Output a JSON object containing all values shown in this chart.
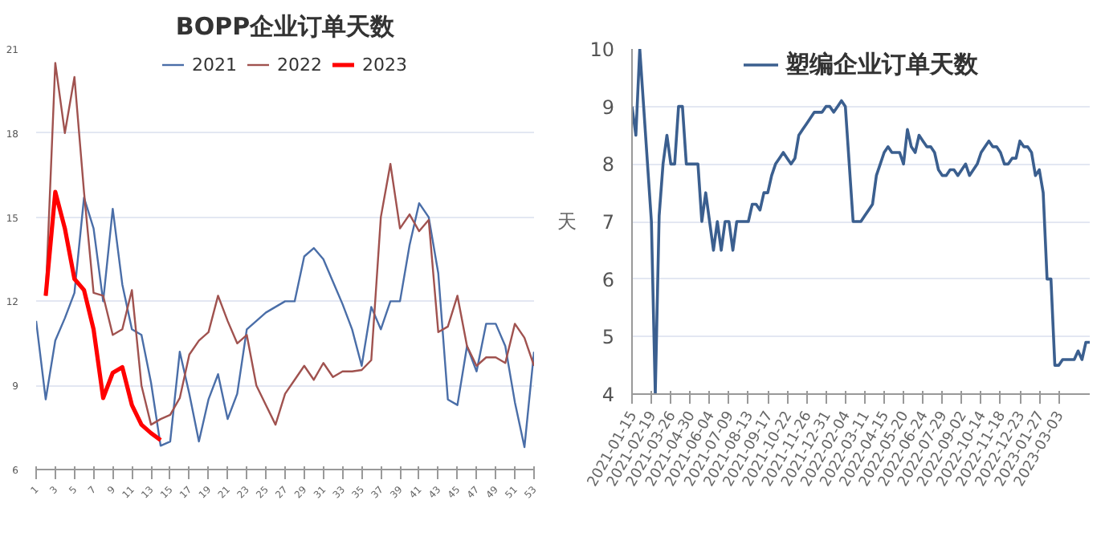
{
  "chart_data": [
    {
      "type": "line",
      "title": "BOPP企业订单天数",
      "x": [
        1,
        2,
        3,
        4,
        5,
        6,
        7,
        8,
        9,
        10,
        11,
        12,
        13,
        14,
        15,
        16,
        17,
        18,
        19,
        20,
        21,
        22,
        23,
        24,
        25,
        26,
        27,
        28,
        29,
        30,
        31,
        32,
        33,
        34,
        35,
        36,
        37,
        38,
        39,
        40,
        41,
        42,
        43,
        44,
        45,
        46,
        47,
        48,
        49,
        50,
        51,
        52,
        53
      ],
      "xlim": [
        1,
        53
      ],
      "xticks": [
        1,
        3,
        5,
        7,
        9,
        11,
        13,
        15,
        17,
        19,
        21,
        23,
        25,
        27,
        29,
        31,
        33,
        35,
        37,
        39,
        41,
        43,
        45,
        47,
        49,
        51,
        53
      ],
      "ylim": [
        6,
        21
      ],
      "yticks": [
        6,
        9,
        12,
        15,
        18,
        21
      ],
      "grid": "y",
      "legend": "top",
      "series": [
        {
          "name": "2021",
          "color": "#4a6ea8",
          "values": [
            11.3,
            8.5,
            10.6,
            11.4,
            12.3,
            15.7,
            14.6,
            12.0,
            15.3,
            12.6,
            11.0,
            10.8,
            9.1,
            6.85,
            7.0,
            10.2,
            8.7,
            7.0,
            8.5,
            9.4,
            7.8,
            8.7,
            11.0,
            11.3,
            11.6,
            11.8,
            12.0,
            12.0,
            13.6,
            13.9,
            13.5,
            12.7,
            11.9,
            11.0,
            9.7,
            11.8,
            11.0,
            12.0,
            12.0,
            14.0,
            15.5,
            15.0,
            13.0,
            8.5,
            8.3,
            10.4,
            9.5,
            11.2,
            11.2,
            10.4,
            8.4,
            6.8,
            10.2
          ]
        },
        {
          "name": "2022",
          "color": "#a0524f",
          "values": [
            null,
            12.2,
            20.5,
            18.0,
            20.0,
            15.9,
            12.3,
            12.2,
            10.8,
            11.0,
            12.4,
            9.0,
            7.6,
            7.8,
            7.95,
            8.55,
            10.1,
            10.6,
            10.9,
            12.2,
            11.3,
            10.5,
            10.8,
            9.0,
            8.3,
            7.6,
            8.7,
            9.2,
            9.7,
            9.2,
            9.8,
            9.3,
            9.5,
            9.5,
            9.55,
            9.9,
            15.0,
            16.9,
            14.6,
            15.1,
            14.5,
            14.9,
            10.9,
            11.1,
            12.2,
            10.4,
            9.7,
            10.0,
            10.0,
            9.8,
            11.2,
            10.7,
            9.7
          ]
        },
        {
          "name": "2023",
          "color": "#ff0000",
          "values": [
            null,
            12.2,
            15.9,
            14.6,
            12.8,
            12.4,
            11.0,
            8.55,
            9.45,
            9.65,
            8.3,
            7.6,
            7.3,
            7.05,
            null,
            null,
            null,
            null,
            null,
            null,
            null,
            null,
            null,
            null,
            null,
            null,
            null,
            null,
            null,
            null,
            null,
            null,
            null,
            null,
            null,
            null,
            null,
            null,
            null,
            null,
            null,
            null,
            null,
            null,
            null,
            null,
            null,
            null,
            null,
            null,
            null,
            null,
            null
          ]
        }
      ]
    },
    {
      "type": "line",
      "ylabel": "天",
      "categories": [
        "2021-01-15",
        null,
        null,
        null,
        null,
        "2021-02-19",
        null,
        null,
        null,
        null,
        "2021-03-26",
        null,
        null,
        null,
        null,
        "2021-04-30",
        null,
        null,
        null,
        null,
        "2021-06-04",
        null,
        null,
        null,
        null,
        "2021-07-09",
        null,
        null,
        null,
        null,
        "2021-08-13",
        null,
        null,
        null,
        null,
        "2021-09-17",
        null,
        null,
        null,
        null,
        "2021-10-22",
        null,
        null,
        null,
        null,
        "2021-11-26",
        null,
        null,
        null,
        null,
        "2021-12-31",
        null,
        null,
        null,
        null,
        "2022-02-04",
        null,
        null,
        null,
        null,
        "2022-03-11",
        null,
        null,
        null,
        null,
        "2022-04-15",
        null,
        null,
        null,
        null,
        "2022-05-20",
        null,
        null,
        null,
        null,
        "2022-06-24",
        null,
        null,
        null,
        null,
        "2022-07-29",
        null,
        null,
        null,
        null,
        "2022-09-02",
        null,
        null,
        null,
        null,
        "2022-10-14",
        null,
        null,
        null,
        null,
        "2022-11-18",
        null,
        null,
        null,
        null,
        "2022-12-23",
        null,
        null,
        null,
        null,
        "2023-01-27",
        null,
        null,
        null,
        null,
        "2023-03-03",
        null,
        null,
        null,
        null,
        null,
        null,
        null,
        null
      ],
      "ylim": [
        4,
        10
      ],
      "yticks": [
        4,
        5,
        6,
        7,
        8,
        9,
        10
      ],
      "grid": "y",
      "legend": "top",
      "series": [
        {
          "name": "塑编企业订单天数",
          "color": "#3b5f8f",
          "values": [
            9.0,
            8.5,
            10.0,
            9.0,
            8.0,
            7.0,
            4.0,
            7.1,
            8.0,
            8.5,
            8.0,
            8.0,
            9.0,
            9.0,
            8.0,
            8.0,
            8.0,
            8.0,
            7.0,
            7.5,
            7.0,
            6.5,
            7.0,
            6.5,
            7.0,
            7.0,
            6.5,
            7.0,
            7.0,
            7.0,
            7.0,
            7.3,
            7.3,
            7.2,
            7.5,
            7.5,
            7.8,
            8.0,
            8.1,
            8.2,
            8.1,
            8.0,
            8.1,
            8.5,
            8.6,
            8.7,
            8.8,
            8.9,
            8.9,
            8.9,
            9.0,
            9.0,
            8.9,
            9.0,
            9.1,
            9.0,
            8.0,
            7.0,
            7.0,
            7.0,
            7.1,
            7.2,
            7.3,
            7.8,
            8.0,
            8.2,
            8.3,
            8.2,
            8.2,
            8.2,
            8.0,
            8.6,
            8.3,
            8.2,
            8.5,
            8.4,
            8.3,
            8.3,
            8.2,
            7.9,
            7.8,
            7.8,
            7.9,
            7.9,
            7.8,
            7.9,
            8.0,
            7.8,
            7.9,
            8.0,
            8.2,
            8.3,
            8.4,
            8.3,
            8.3,
            8.2,
            8.0,
            8.0,
            8.1,
            8.1,
            8.4,
            8.3,
            8.3,
            8.2,
            7.8,
            7.9,
            7.5,
            6.0,
            6.0,
            4.5,
            4.5,
            4.6,
            4.6,
            4.6,
            4.6,
            4.75,
            4.6,
            4.9,
            4.9
          ]
        }
      ]
    }
  ]
}
